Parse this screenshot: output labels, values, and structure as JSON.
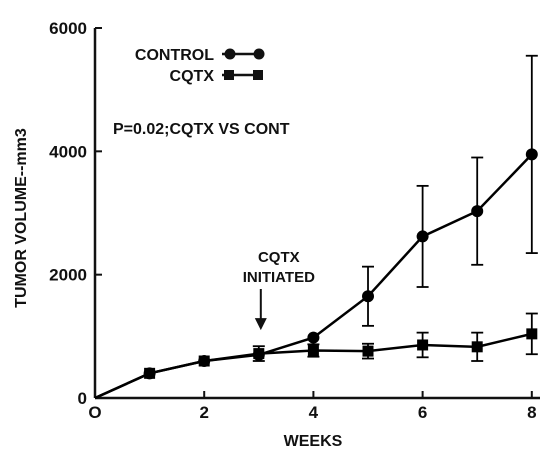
{
  "chart_data": {
    "type": "line",
    "title": "",
    "xlabel": "WEEKS",
    "ylabel": "TUMOR VOLUME--mm3",
    "xlim": [
      0,
      8.15
    ],
    "ylim": [
      0,
      6000
    ],
    "x_ticks": [
      0,
      2,
      4,
      6,
      8
    ],
    "x_tick_labels": [
      "O",
      "2",
      "4",
      "6",
      "8"
    ],
    "y_ticks": [
      0,
      2000,
      4000,
      6000
    ],
    "y_tick_labels": [
      "0",
      "2000",
      "4000",
      "6000"
    ],
    "grid": false,
    "legend_placement": "top-left",
    "series": [
      {
        "name": "CONTROL",
        "marker": "circle",
        "color": "#000000",
        "x": [
          0,
          1,
          2,
          3,
          4,
          5,
          6,
          7,
          8
        ],
        "y": [
          0,
          400,
          600,
          700,
          980,
          1650,
          2620,
          3030,
          3950
        ],
        "error": [
          0,
          0,
          0,
          0,
          0,
          480,
          820,
          870,
          1600
        ]
      },
      {
        "name": "CQTX",
        "marker": "square",
        "color": "#000000",
        "x": [
          0,
          1,
          2,
          3,
          4,
          5,
          6,
          7,
          8
        ],
        "y": [
          0,
          400,
          600,
          720,
          770,
          760,
          860,
          830,
          1040
        ],
        "error": [
          0,
          0,
          0,
          120,
          100,
          120,
          200,
          230,
          330
        ]
      }
    ],
    "annotations": {
      "pvalue": "P=0.02;CQTX VS CONT",
      "arrow_label_line1": "CQTX",
      "arrow_label_line2": "INITIATED",
      "arrow_x": 3,
      "arrow_tip_y": 1100
    }
  }
}
